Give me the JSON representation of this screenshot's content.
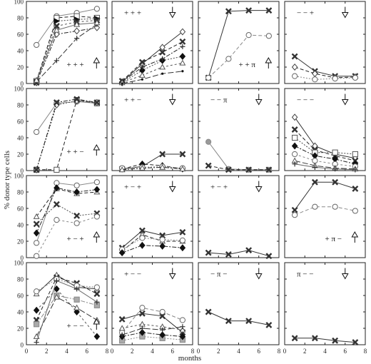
{
  "ylabel": "% donor type cells",
  "xlabel": "months",
  "x_ticks": [
    "0",
    "2",
    "4",
    "6",
    "8"
  ],
  "y_ticks": [
    "0",
    "20",
    "40",
    "60",
    "80",
    "100"
  ],
  "chart_data": {
    "type": "line",
    "layout": "4x4 small multiples",
    "xlabel": "months",
    "ylabel": "% donor type cells",
    "xlim": [
      0,
      8
    ],
    "ylim": [
      0,
      100
    ],
    "panels": [
      {
        "label": "+ + +",
        "arrow": "up",
        "series": [
          {
            "marker": "circle",
            "x": [
              1,
              3,
              5,
              7
            ],
            "y": [
              47,
              82,
              86,
              91
            ]
          },
          {
            "marker": "square",
            "x": [
              1,
              3,
              5,
              7
            ],
            "y": [
              3,
              80,
              82,
              80
            ]
          },
          {
            "marker": "triangle-right",
            "x": [
              1,
              3,
              5,
              7
            ],
            "y": [
              2,
              76,
              78,
              79
            ]
          },
          {
            "marker": "diamond",
            "x": [
              1,
              3,
              5,
              7
            ],
            "y": [
              1,
              60,
              64,
              68
            ]
          },
          {
            "marker": "cross",
            "x": [
              1,
              3,
              5,
              7
            ],
            "y": [
              1,
              70,
              75,
              77
            ]
          },
          {
            "marker": "plus",
            "x": [
              1,
              3,
              5,
              7
            ],
            "y": [
              2,
              28,
              55,
              72
            ]
          },
          {
            "marker": "triangle",
            "x": [
              1,
              3,
              5,
              7
            ],
            "y": [
              4,
              65,
              72,
              74
            ]
          }
        ]
      },
      {
        "label": "+ + +",
        "arrow": "down",
        "series": [
          {
            "marker": "diamond",
            "x": [
              1,
              3,
              5,
              7
            ],
            "y": [
              2,
              24,
              44,
              63
            ]
          },
          {
            "marker": "cross",
            "x": [
              1,
              3,
              5,
              7
            ],
            "y": [
              3,
              26,
              38,
              51
            ]
          },
          {
            "marker": "diamond-filled",
            "x": [
              1,
              3,
              5,
              7
            ],
            "y": [
              1,
              16,
              28,
              33
            ]
          },
          {
            "marker": "plus",
            "x": [
              1,
              3,
              5,
              7
            ],
            "y": [
              2,
              20,
              30,
              45
            ]
          },
          {
            "marker": "triangle",
            "x": [
              1,
              3,
              5,
              7
            ],
            "y": [
              1,
              10,
              20,
              25
            ]
          },
          {
            "marker": "dot",
            "x": [
              1,
              3,
              5,
              7
            ],
            "y": [
              0,
              5,
              12,
              15
            ]
          }
        ]
      },
      {
        "label": "+ + π",
        "arrow": "up",
        "series": [
          {
            "marker": "cross",
            "x": [
              1,
              3,
              5,
              7
            ],
            "y": [
              7,
              88,
              89,
              89
            ]
          },
          {
            "marker": "circle",
            "x": [
              1,
              3,
              5,
              7
            ],
            "y": [
              7,
              30,
              59,
              58
            ]
          }
        ]
      },
      {
        "label": "− − +",
        "arrow": "down",
        "series": [
          {
            "marker": "cross",
            "x": [
              1,
              3,
              5,
              7
            ],
            "y": [
              33,
              15,
              9,
              9
            ]
          },
          {
            "marker": "diamond",
            "x": [
              1,
              3,
              5,
              7
            ],
            "y": [
              20,
              12,
              7,
              8
            ]
          },
          {
            "marker": "circle",
            "x": [
              1,
              3,
              5,
              7
            ],
            "y": [
              9,
              5,
              6,
              7
            ]
          }
        ]
      },
      {
        "label": "+ + −",
        "arrow": "up",
        "series": [
          {
            "marker": "circle",
            "x": [
              1,
              3,
              5,
              7
            ],
            "y": [
              47,
              82,
              84,
              82
            ]
          },
          {
            "marker": "square",
            "x": [
              1,
              3,
              5,
              7
            ],
            "y": [
              1,
              1,
              86,
              82
            ]
          },
          {
            "marker": "diamond",
            "x": [
              1,
              3,
              5,
              7
            ],
            "y": [
              1,
              80,
              85,
              83
            ]
          },
          {
            "marker": "cross",
            "x": [
              1,
              3,
              5,
              7
            ],
            "y": [
              1,
              83,
              87,
              83
            ]
          }
        ]
      },
      {
        "label": "+ + −",
        "arrow": "down",
        "series": [
          {
            "marker": "cross",
            "x": [
              1,
              3,
              5,
              7
            ],
            "y": [
              2,
              5,
              20,
              20
            ]
          },
          {
            "marker": "diamond-filled",
            "x": [
              1,
              3,
              5,
              7
            ],
            "y": [
              2,
              8,
              6,
              2
            ]
          },
          {
            "marker": "circle",
            "x": [
              1,
              3,
              5,
              7
            ],
            "y": [
              3,
              4,
              5,
              3
            ]
          },
          {
            "marker": "triangle",
            "x": [
              1,
              3,
              5,
              7
            ],
            "y": [
              1,
              3,
              4,
              2
            ]
          }
        ]
      },
      {
        "label": "− − π",
        "arrow": "down",
        "series": [
          {
            "marker": "circle-filled",
            "x": [
              1,
              3,
              5,
              7
            ],
            "y": [
              35,
              2,
              1,
              1
            ]
          },
          {
            "marker": "cross",
            "x": [
              1,
              3,
              5,
              7
            ],
            "y": [
              6,
              1,
              1,
              1
            ]
          }
        ]
      },
      {
        "label": "− − −",
        "arrow": "down",
        "series": [
          {
            "marker": "diamond",
            "x": [
              1,
              3,
              5,
              7
            ],
            "y": [
              65,
              30,
              20,
              15
            ]
          },
          {
            "marker": "cross",
            "x": [
              1,
              3,
              5,
              7
            ],
            "y": [
              50,
              25,
              18,
              12
            ]
          },
          {
            "marker": "square",
            "x": [
              1,
              3,
              5,
              7
            ],
            "y": [
              40,
              22,
              22,
              20
            ]
          },
          {
            "marker": "diamond-filled",
            "x": [
              1,
              3,
              5,
              7
            ],
            "y": [
              30,
              18,
              14,
              8
            ]
          },
          {
            "marker": "circle",
            "x": [
              1,
              3,
              5,
              7
            ],
            "y": [
              20,
              12,
              8,
              5
            ]
          },
          {
            "marker": "triangle",
            "x": [
              1,
              3,
              5,
              7
            ],
            "y": [
              12,
              6,
              3,
              2
            ]
          },
          {
            "marker": "plus",
            "x": [
              1,
              3,
              5,
              7
            ],
            "y": [
              8,
              4,
              2,
              1
            ]
          }
        ]
      },
      {
        "label": "+ − +",
        "arrow": "up",
        "series": [
          {
            "marker": "circle",
            "x": [
              1,
              3,
              5,
              7
            ],
            "y": [
              18,
              91,
              88,
              92
            ]
          },
          {
            "marker": "triangle",
            "x": [
              1,
              3,
              5,
              7
            ],
            "y": [
              50,
              84,
              78,
              80
            ]
          },
          {
            "marker": "cross",
            "x": [
              1,
              3,
              5,
              7
            ],
            "y": [
              41,
              65,
              51,
              54
            ]
          },
          {
            "marker": "diamond-filled",
            "x": [
              1,
              3,
              5,
              7
            ],
            "y": [
              30,
              85,
              80,
              83
            ]
          },
          {
            "marker": "circle",
            "x": [
              1,
              3,
              5,
              7
            ],
            "y": [
              2,
              46,
              42,
              50
            ]
          }
        ]
      },
      {
        "label": "+ − +",
        "arrow": "down",
        "series": [
          {
            "marker": "cross",
            "x": [
              1,
              3,
              5,
              7
            ],
            "y": [
              12,
              33,
              27,
              31
            ]
          },
          {
            "marker": "triangle",
            "x": [
              1,
              3,
              5,
              7
            ],
            "y": [
              8,
              28,
              20,
              20
            ]
          },
          {
            "marker": "circle",
            "x": [
              1,
              3,
              5,
              7
            ],
            "y": [
              10,
              24,
              22,
              21
            ]
          },
          {
            "marker": "diamond-filled",
            "x": [
              1,
              3,
              5,
              7
            ],
            "y": [
              6,
              15,
              14,
              12
            ]
          }
        ]
      },
      {
        "label": "+ − +",
        "arrow": "down",
        "series": [
          {
            "marker": "cross",
            "x": [
              1,
              3,
              5,
              7
            ],
            "y": [
              6,
              4,
              9,
              2
            ]
          }
        ]
      },
      {
        "label": "+ π −",
        "arrow": "up",
        "series": [
          {
            "marker": "cross",
            "x": [
              1,
              3,
              5,
              7
            ],
            "y": [
              58,
              92,
              92,
              84
            ]
          },
          {
            "marker": "circle",
            "x": [
              1,
              3,
              5,
              7
            ],
            "y": [
              52,
              62,
              62,
              57
            ]
          }
        ]
      },
      {
        "label": "+ − −",
        "arrow": "up",
        "series": [
          {
            "marker": "triangle",
            "x": [
              1,
              3,
              5,
              7
            ],
            "y": [
              62,
              85,
              70,
              68
            ]
          },
          {
            "marker": "cross",
            "x": [
              1,
              3,
              5,
              7
            ],
            "y": [
              30,
              82,
              75,
              62
            ]
          },
          {
            "marker": "circle",
            "x": [
              1,
              3,
              5,
              7
            ],
            "y": [
              65,
              80,
              72,
              70
            ]
          },
          {
            "marker": "square-gray",
            "x": [
              1,
              3,
              5,
              7
            ],
            "y": [
              25,
              60,
              55,
              48
            ]
          },
          {
            "marker": "diamond-filled",
            "x": [
              1,
              3,
              5,
              7
            ],
            "y": [
              42,
              68,
              40,
              10
            ]
          },
          {
            "marker": "triangle",
            "x": [
              1,
              3,
              5,
              7
            ],
            "y": [
              10,
              58,
              45,
              30
            ]
          },
          {
            "marker": "plus",
            "x": [
              1,
              3,
              5,
              7
            ],
            "y": [
              3,
              78,
              68,
              52
            ]
          }
        ]
      },
      {
        "label": "+ − −",
        "arrow": "down",
        "series": [
          {
            "marker": "cross",
            "x": [
              1,
              3,
              5,
              7
            ],
            "y": [
              31,
              38,
              35,
              15
            ]
          },
          {
            "marker": "circle",
            "x": [
              1,
              3,
              5,
              7
            ],
            "y": [
              15,
              45,
              40,
              30
            ]
          },
          {
            "marker": "square-gray",
            "x": [
              1,
              3,
              5,
              7
            ],
            "y": [
              5,
              10,
              8,
              6
            ]
          },
          {
            "marker": "diamond-filled",
            "x": [
              1,
              3,
              5,
              7
            ],
            "y": [
              10,
              15,
              12,
              10
            ]
          },
          {
            "marker": "triangle",
            "x": [
              1,
              3,
              5,
              7
            ],
            "y": [
              20,
              25,
              22,
              18
            ]
          },
          {
            "marker": "plus",
            "x": [
              1,
              3,
              5,
              7
            ],
            "y": [
              12,
              20,
              18,
              22
            ]
          }
        ]
      },
      {
        "label": "− π −",
        "arrow": "down",
        "series": [
          {
            "marker": "cross",
            "x": [
              1,
              3,
              5,
              7
            ],
            "y": [
              40,
              29,
              29,
              24
            ]
          }
        ]
      },
      {
        "label": "π − −",
        "arrow": "down",
        "series": [
          {
            "marker": "cross",
            "x": [
              1,
              3,
              5,
              7
            ],
            "y": [
              8,
              8,
              5,
              3
            ]
          }
        ]
      }
    ]
  }
}
